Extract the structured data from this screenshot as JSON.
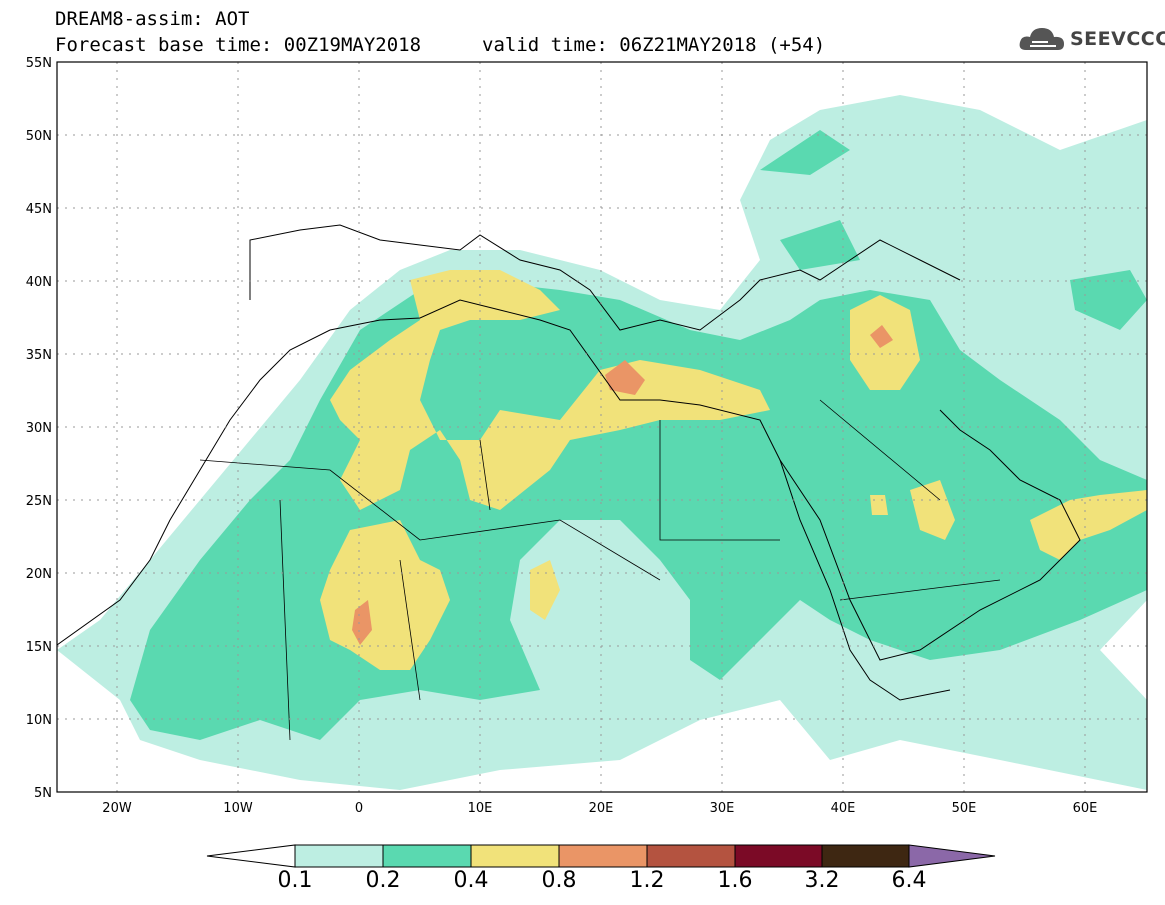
{
  "header": {
    "title_line1": "DREAM8-assim: AOT",
    "base_time": "Forecast base time: 00Z19MAY2018",
    "valid_time": "valid time: 06Z21MAY2018 (+54)",
    "logo_text": "SEEVCCC",
    "logo_icon": "cloud-icon"
  },
  "map": {
    "lat_labels": [
      "55N",
      "50N",
      "45N",
      "40N",
      "35N",
      "30N",
      "25N",
      "20N",
      "15N",
      "10N",
      "5N"
    ],
    "lon_labels": [
      "20W",
      "10W",
      "0",
      "10E",
      "20E",
      "30E",
      "40E",
      "50E",
      "60E"
    ],
    "grid": "dotted",
    "extent": {
      "lon_min": -25,
      "lon_max": 65,
      "lat_min": 5,
      "lat_max": 55
    }
  },
  "colorbar": {
    "labels": [
      "0.1",
      "0.2",
      "0.4",
      "0.8",
      "1.2",
      "1.6",
      "3.2",
      "6.4"
    ],
    "colors": [
      "#ffffff",
      "#bdeee2",
      "#5ad9b0",
      "#f1e27a",
      "#ea9566",
      "#b45340",
      "#7b0a26",
      "#3e2712",
      "#8b68a8"
    ]
  }
}
